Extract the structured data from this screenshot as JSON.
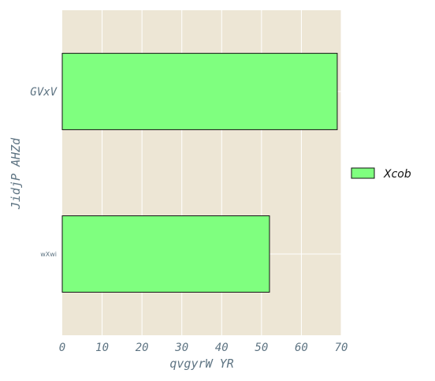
{
  "chart_data": {
    "type": "bar",
    "orientation": "horizontal",
    "categories": [
      "GVxV",
      "wXwi"
    ],
    "series": [
      {
        "name": "Xcob",
        "values": [
          69,
          52
        ],
        "color": "#7fff7f"
      }
    ],
    "xlabel": "qvgyrW YR",
    "ylabel": "JidjP AHZd",
    "xlim": [
      0,
      70
    ],
    "x_ticks": [
      0,
      10,
      20,
      30,
      40,
      50,
      60,
      70
    ],
    "grid": true,
    "legend_position": "right",
    "colors": {
      "plot_background": "#ede6d5",
      "grid": "#ffffff",
      "bar_edge": "#111111",
      "text": "#5e7483"
    }
  }
}
